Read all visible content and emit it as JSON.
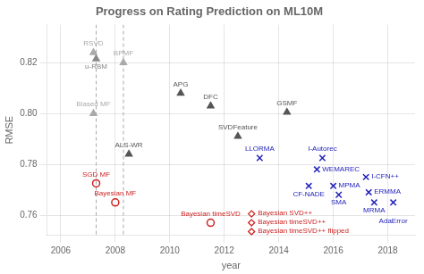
{
  "chart_data": {
    "type": "scatter",
    "title": "Progress on Rating Prediction on ML10M",
    "xlabel": "year",
    "ylabel": "RMSE",
    "xlim": [
      2005.5,
      2019.0
    ],
    "ylim": [
      0.752,
      0.835
    ],
    "xticks": [
      2006,
      2008,
      2010,
      2012,
      2014,
      2016,
      2018
    ],
    "yticks": [
      0.76,
      0.78,
      {
        "value": 0.8,
        "label": "0.80"
      },
      0.82
    ],
    "grid": true,
    "series": [
      {
        "marker": "triangle",
        "x": [
          2007.2,
          2007.3,
          2008.3,
          2007.2,
          2008.5,
          2010.4,
          2011.5,
          2014.3,
          2012.5
        ],
        "values": [
          0.824,
          0.8215,
          0.82,
          0.8,
          0.784,
          0.808,
          0.803,
          0.8005,
          0.791
        ],
        "labels": [
          "RSVD",
          "u-RBM",
          "BPMF",
          "Biased MF",
          "ALS-WR",
          "APG",
          "DFC",
          "GSMF",
          "SVDFeature"
        ],
        "colors": [
          "#aaaaaa",
          "#888888",
          "#aaaaaa",
          "#aaaaaa",
          "#555555",
          "#555555",
          "#555555",
          "#555555",
          "#555555"
        ]
      },
      {
        "marker": "open_circle",
        "color": "#cc2222",
        "x": [
          2007.3,
          2008.0,
          2011.5
        ],
        "values": [
          0.7725,
          0.765,
          0.757
        ],
        "labels": [
          "SGD MF",
          "Bayesian MF",
          "Bayesian timeSVD"
        ]
      },
      {
        "marker": "x",
        "color": "#2222bb",
        "x": [
          2013.3,
          2015.6,
          2015.4,
          2015.1,
          2016.0,
          2016.2,
          2017.2,
          2017.3,
          2017.5,
          2018.2
        ],
        "values": [
          0.7825,
          0.7825,
          0.778,
          0.7715,
          0.7715,
          0.768,
          0.775,
          0.769,
          0.765,
          0.765
        ],
        "labels": [
          "LLORMA",
          "I-Autorec",
          "WEMAREC",
          "CF-NADE",
          "MPMA",
          "SMA",
          "I-CFN++",
          "ERMMA",
          "MRMA",
          "AdaError"
        ]
      }
    ],
    "annotations": [
      {
        "text": "Bayesian SVD++",
        "x": 2013.0,
        "y": 0.7605,
        "marker": "open_diamond",
        "color": "#cc2222"
      },
      {
        "text": "Bayesian timeSVD++",
        "x": 2013.0,
        "y": 0.757,
        "marker": "open_diamond",
        "color": "#cc2222"
      },
      {
        "text": "Bayesian timeSVD++ flipped",
        "x": 2013.0,
        "y": 0.7535,
        "marker": "open_diamond",
        "color": "#cc2222"
      }
    ],
    "vertical_lines": [
      {
        "x": 2007.3,
        "line_style": "dashed"
      },
      {
        "x": 2008.3,
        "line_style": "dashed"
      }
    ]
  }
}
